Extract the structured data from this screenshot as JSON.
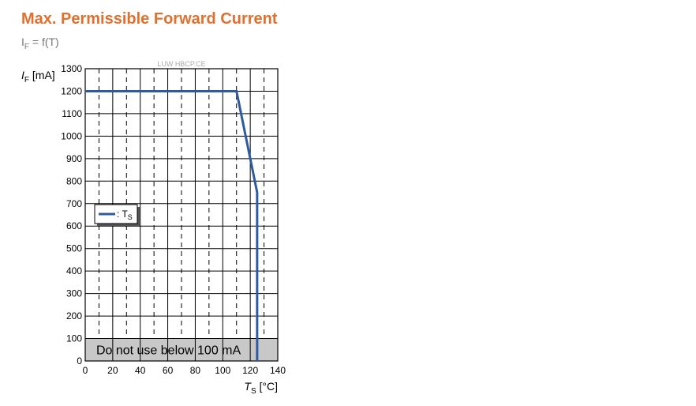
{
  "chart_data": {
    "type": "line",
    "title": "Max. Permissible Forward Current",
    "subtitle": [
      "I",
      "F",
      " = f(T)"
    ],
    "watermark": "LUW HBCP.CE",
    "ylabel": [
      "I",
      "F",
      " [mA]"
    ],
    "xlabel": [
      "T",
      "S",
      " [°C]"
    ],
    "x": [
      0,
      110,
      125,
      125
    ],
    "series": [
      {
        "name": ": T",
        "name_sub": "S",
        "color": "#2f5a9e",
        "values": [
          1200,
          1200,
          750,
          0
        ]
      }
    ],
    "xlim": [
      0,
      140
    ],
    "xticks": [
      0,
      20,
      40,
      60,
      80,
      100,
      120,
      140
    ],
    "xminor": [
      10,
      30,
      50,
      70,
      90,
      110,
      130
    ],
    "ylim": [
      0,
      1300
    ],
    "yticks": [
      0,
      100,
      200,
      300,
      400,
      500,
      600,
      700,
      800,
      900,
      1000,
      1100,
      1200,
      1300
    ],
    "band": {
      "ylim": [
        0,
        100
      ],
      "label": "Do not use below 100 mA",
      "color": "#c8c8c8"
    },
    "grid": true,
    "legend": "left"
  }
}
